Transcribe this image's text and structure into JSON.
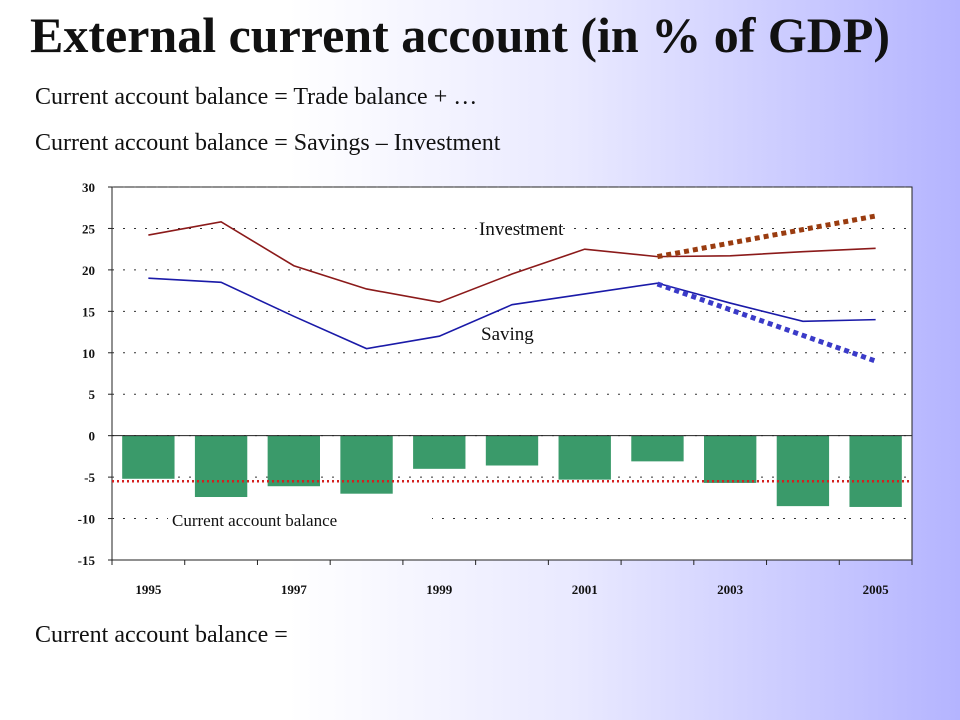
{
  "slide": {
    "title": "External current account (in % of GDP)",
    "subtitle_1": "Current account balance = Trade balance + …",
    "subtitle_2": "Current account balance = Savings – Investment",
    "footer": "Current account balance ="
  },
  "chart_data": {
    "type": "bar+line",
    "ylim": [
      -15,
      30
    ],
    "yticks": [
      30,
      25,
      20,
      15,
      10,
      5,
      0,
      -5,
      -10,
      -15
    ],
    "x_tick_labels": [
      "1995",
      "1997",
      "1999",
      "2001",
      "2003",
      "2005"
    ],
    "grid": true,
    "categories": [
      1995,
      1996,
      1997,
      1998,
      1999,
      2000,
      2001,
      2002,
      2003,
      2004,
      2005
    ],
    "bars": {
      "name": "Current account balance",
      "values": [
        -5.2,
        -7.4,
        -6.1,
        -7.0,
        -4.0,
        -3.6,
        -5.3,
        -3.1,
        -5.7,
        -8.5,
        -8.6
      ],
      "color": "#3a9a6a"
    },
    "series": [
      {
        "name": "Investment",
        "values": [
          24.2,
          25.8,
          20.5,
          17.7,
          16.1,
          19.5,
          22.5,
          21.6,
          21.7,
          22.2,
          22.6
        ],
        "color": "#8b1a1a"
      },
      {
        "name": "Saving",
        "values": [
          19.0,
          18.5,
          14.4,
          10.5,
          12.0,
          15.8,
          17.1,
          18.4,
          16.0,
          13.8,
          14.0
        ],
        "color": "#1a1aa8"
      }
    ],
    "projections": [
      {
        "x": [
          2002,
          2005
        ],
        "y": [
          21.6,
          26.5
        ],
        "color": "#9a3c10"
      },
      {
        "x": [
          2002,
          2005
        ],
        "y": [
          18.3,
          9.0
        ],
        "color": "#3a3ac8"
      }
    ],
    "reference_line": {
      "y": -5.5,
      "color": "#d42020"
    },
    "annotations": [
      "Investment",
      "Saving",
      "Current account balance"
    ]
  }
}
